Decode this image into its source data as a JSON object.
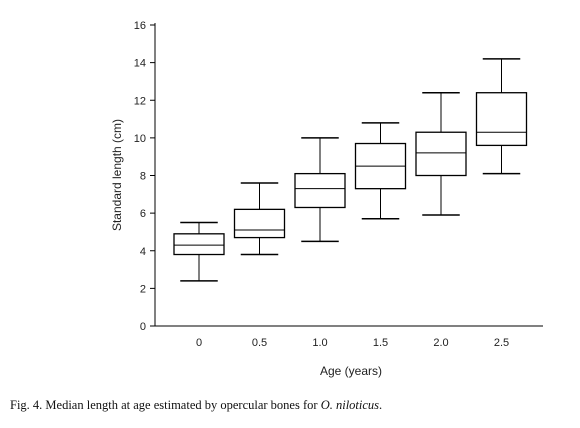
{
  "chart_data": {
    "type": "box",
    "xlabel": "Age (years)",
    "ylabel": "Standard length (cm)",
    "ylim": [
      0,
      16
    ],
    "yticks": [
      "0",
      "2",
      "4",
      "6",
      "8",
      "10",
      "12",
      "14",
      "16"
    ],
    "categories": [
      "0",
      "0.5",
      "1.0",
      "1.5",
      "2.0",
      "2.5"
    ],
    "boxes": [
      {
        "category": "0",
        "min": 2.4,
        "q1": 3.8,
        "median": 4.3,
        "q3": 4.9,
        "max": 5.5
      },
      {
        "category": "0.5",
        "min": 3.8,
        "q1": 4.7,
        "median": 5.1,
        "q3": 6.2,
        "max": 7.6
      },
      {
        "category": "1.0",
        "min": 4.5,
        "q1": 6.3,
        "median": 7.3,
        "q3": 8.1,
        "max": 10.0
      },
      {
        "category": "1.5",
        "min": 5.7,
        "q1": 7.3,
        "median": 8.5,
        "q3": 9.7,
        "max": 10.8
      },
      {
        "category": "2.0",
        "min": 5.9,
        "q1": 8.0,
        "median": 9.2,
        "q3": 10.3,
        "max": 12.4
      },
      {
        "category": "2.5",
        "min": 8.1,
        "q1": 9.6,
        "median": 10.3,
        "q3": 12.4,
        "max": 14.2
      }
    ],
    "grid": false,
    "legend": "none"
  },
  "caption": {
    "prefix": "Fig. 4. Median length at age estimated by opercular bones for ",
    "species": "O. niloticus",
    "suffix": "."
  }
}
